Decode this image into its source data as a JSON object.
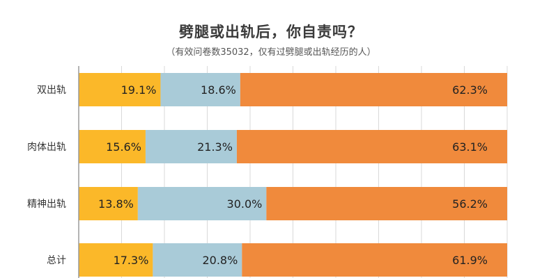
{
  "chart_data": {
    "type": "bar",
    "orientation": "horizontal",
    "stacked": true,
    "title": "劈腿或出轨后，你自责吗？",
    "subtitle": "（有效问卷数35032，仅有过劈腿或出轨经历的人）",
    "categories": [
      "双出轨",
      "肉体出轨",
      "精神出轨",
      "总计"
    ],
    "series": [
      {
        "color": "#fbb829",
        "values": [
          19.1,
          15.6,
          13.8,
          17.3
        ]
      },
      {
        "color": "#a9cbd8",
        "values": [
          18.6,
          21.3,
          30.0,
          20.8
        ]
      },
      {
        "color": "#f08a3c",
        "values": [
          62.3,
          63.1,
          56.2,
          61.9
        ]
      }
    ],
    "value_labels": [
      [
        "19.1%",
        "18.6%",
        "62.3%"
      ],
      [
        "15.6%",
        "21.3%",
        "63.1%"
      ],
      [
        "13.8%",
        "30.0%",
        "56.2%"
      ],
      [
        "17.3%",
        "20.8%",
        "61.9%"
      ]
    ],
    "xlim": [
      0,
      100
    ],
    "grid": true,
    "legend": "none"
  }
}
